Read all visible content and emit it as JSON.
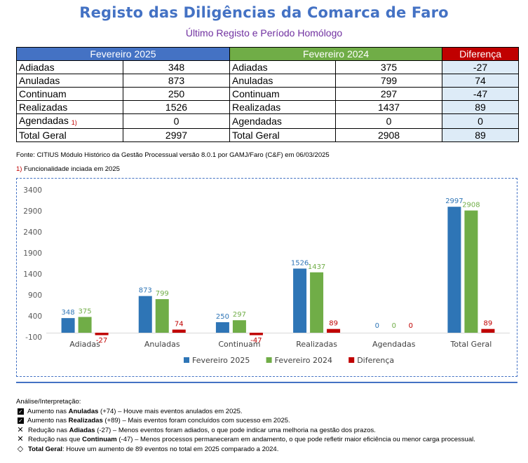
{
  "header": {
    "title": "Registo das Diligências da Comarca de Faro",
    "subtitle": "Último Registo e Período Homólogo"
  },
  "table": {
    "col_2025": "Fevereiro 2025",
    "col_2024": "Fevereiro 2024",
    "col_diff": "Diferença",
    "rows": [
      {
        "label": "Adiadas",
        "v2025": "348",
        "v2024": "375",
        "diff": "-27"
      },
      {
        "label": "Anuladas",
        "v2025": "873",
        "v2024": "799",
        "diff": "74"
      },
      {
        "label": "Continuam",
        "v2025": "250",
        "v2024": "297",
        "diff": "-47"
      },
      {
        "label": "Realizadas",
        "v2025": "1526",
        "v2024": "1437",
        "diff": "89"
      },
      {
        "label": "Agendadas",
        "note": "1)",
        "v2025": "0",
        "v2024": "0",
        "diff": "0"
      },
      {
        "label": "Total Geral",
        "v2025": "2997",
        "v2024": "2908",
        "diff": "89"
      }
    ]
  },
  "source": "Fonte: CITIUS Módulo Histórico da Gestão Processual versão 8.0.1 por GAMJ/Faro (C&F) em 06/03/2025",
  "footnote": {
    "num": "1)",
    "text": " Funcionalidade inciada em 2025"
  },
  "chart_data": {
    "type": "bar",
    "categories": [
      "Adiadas",
      "Anuladas",
      "Continuam",
      "Realizadas",
      "Agendadas",
      "Total Geral"
    ],
    "series": [
      {
        "name": "Fevereiro 2025",
        "color": "#2E75B6",
        "values": [
          348,
          873,
          250,
          1526,
          0,
          2997
        ]
      },
      {
        "name": "Fevereiro 2024",
        "color": "#70AD47",
        "values": [
          375,
          799,
          297,
          1437,
          0,
          2908
        ]
      },
      {
        "name": "Diferença",
        "color": "#C00000",
        "values": [
          -27,
          74,
          -47,
          89,
          0,
          89
        ]
      }
    ],
    "ylim": [
      -100,
      3400
    ],
    "yticks": [
      -100,
      400,
      900,
      1400,
      1900,
      2400,
      2900,
      3400
    ],
    "legend": "bottom",
    "grid": false
  },
  "analysis": {
    "heading": "Análise/Interpretação:",
    "items": [
      {
        "icon": "check-box-icon",
        "pre": "Aumento nas ",
        "bold": "Anuladas",
        "post": " (+74) – Houve mais eventos anulados em 2025."
      },
      {
        "icon": "check-box-icon",
        "pre": "Aumento nas ",
        "bold": "Realizadas",
        "post": " (+89) – Mais eventos foram concluídos com sucesso em 2025."
      },
      {
        "icon": "cross-icon",
        "pre": "Redução nas ",
        "bold": "Adiadas",
        "post": " (-27) – Menos eventos foram adiados, o que pode indicar uma melhoria na gestão dos prazos."
      },
      {
        "icon": "cross-icon",
        "pre": "Redução nas que ",
        "bold": "Continuam",
        "post": " (-47) – Menos processos permaneceram em andamento, o que pode refletir maior eficiência ou menor carga processual."
      },
      {
        "icon": "diamond-icon",
        "pre": "",
        "bold": "Total Geral",
        "post": ": Houve um aumento de 89 eventos no total em 2025 comparado a 2024."
      }
    ]
  }
}
